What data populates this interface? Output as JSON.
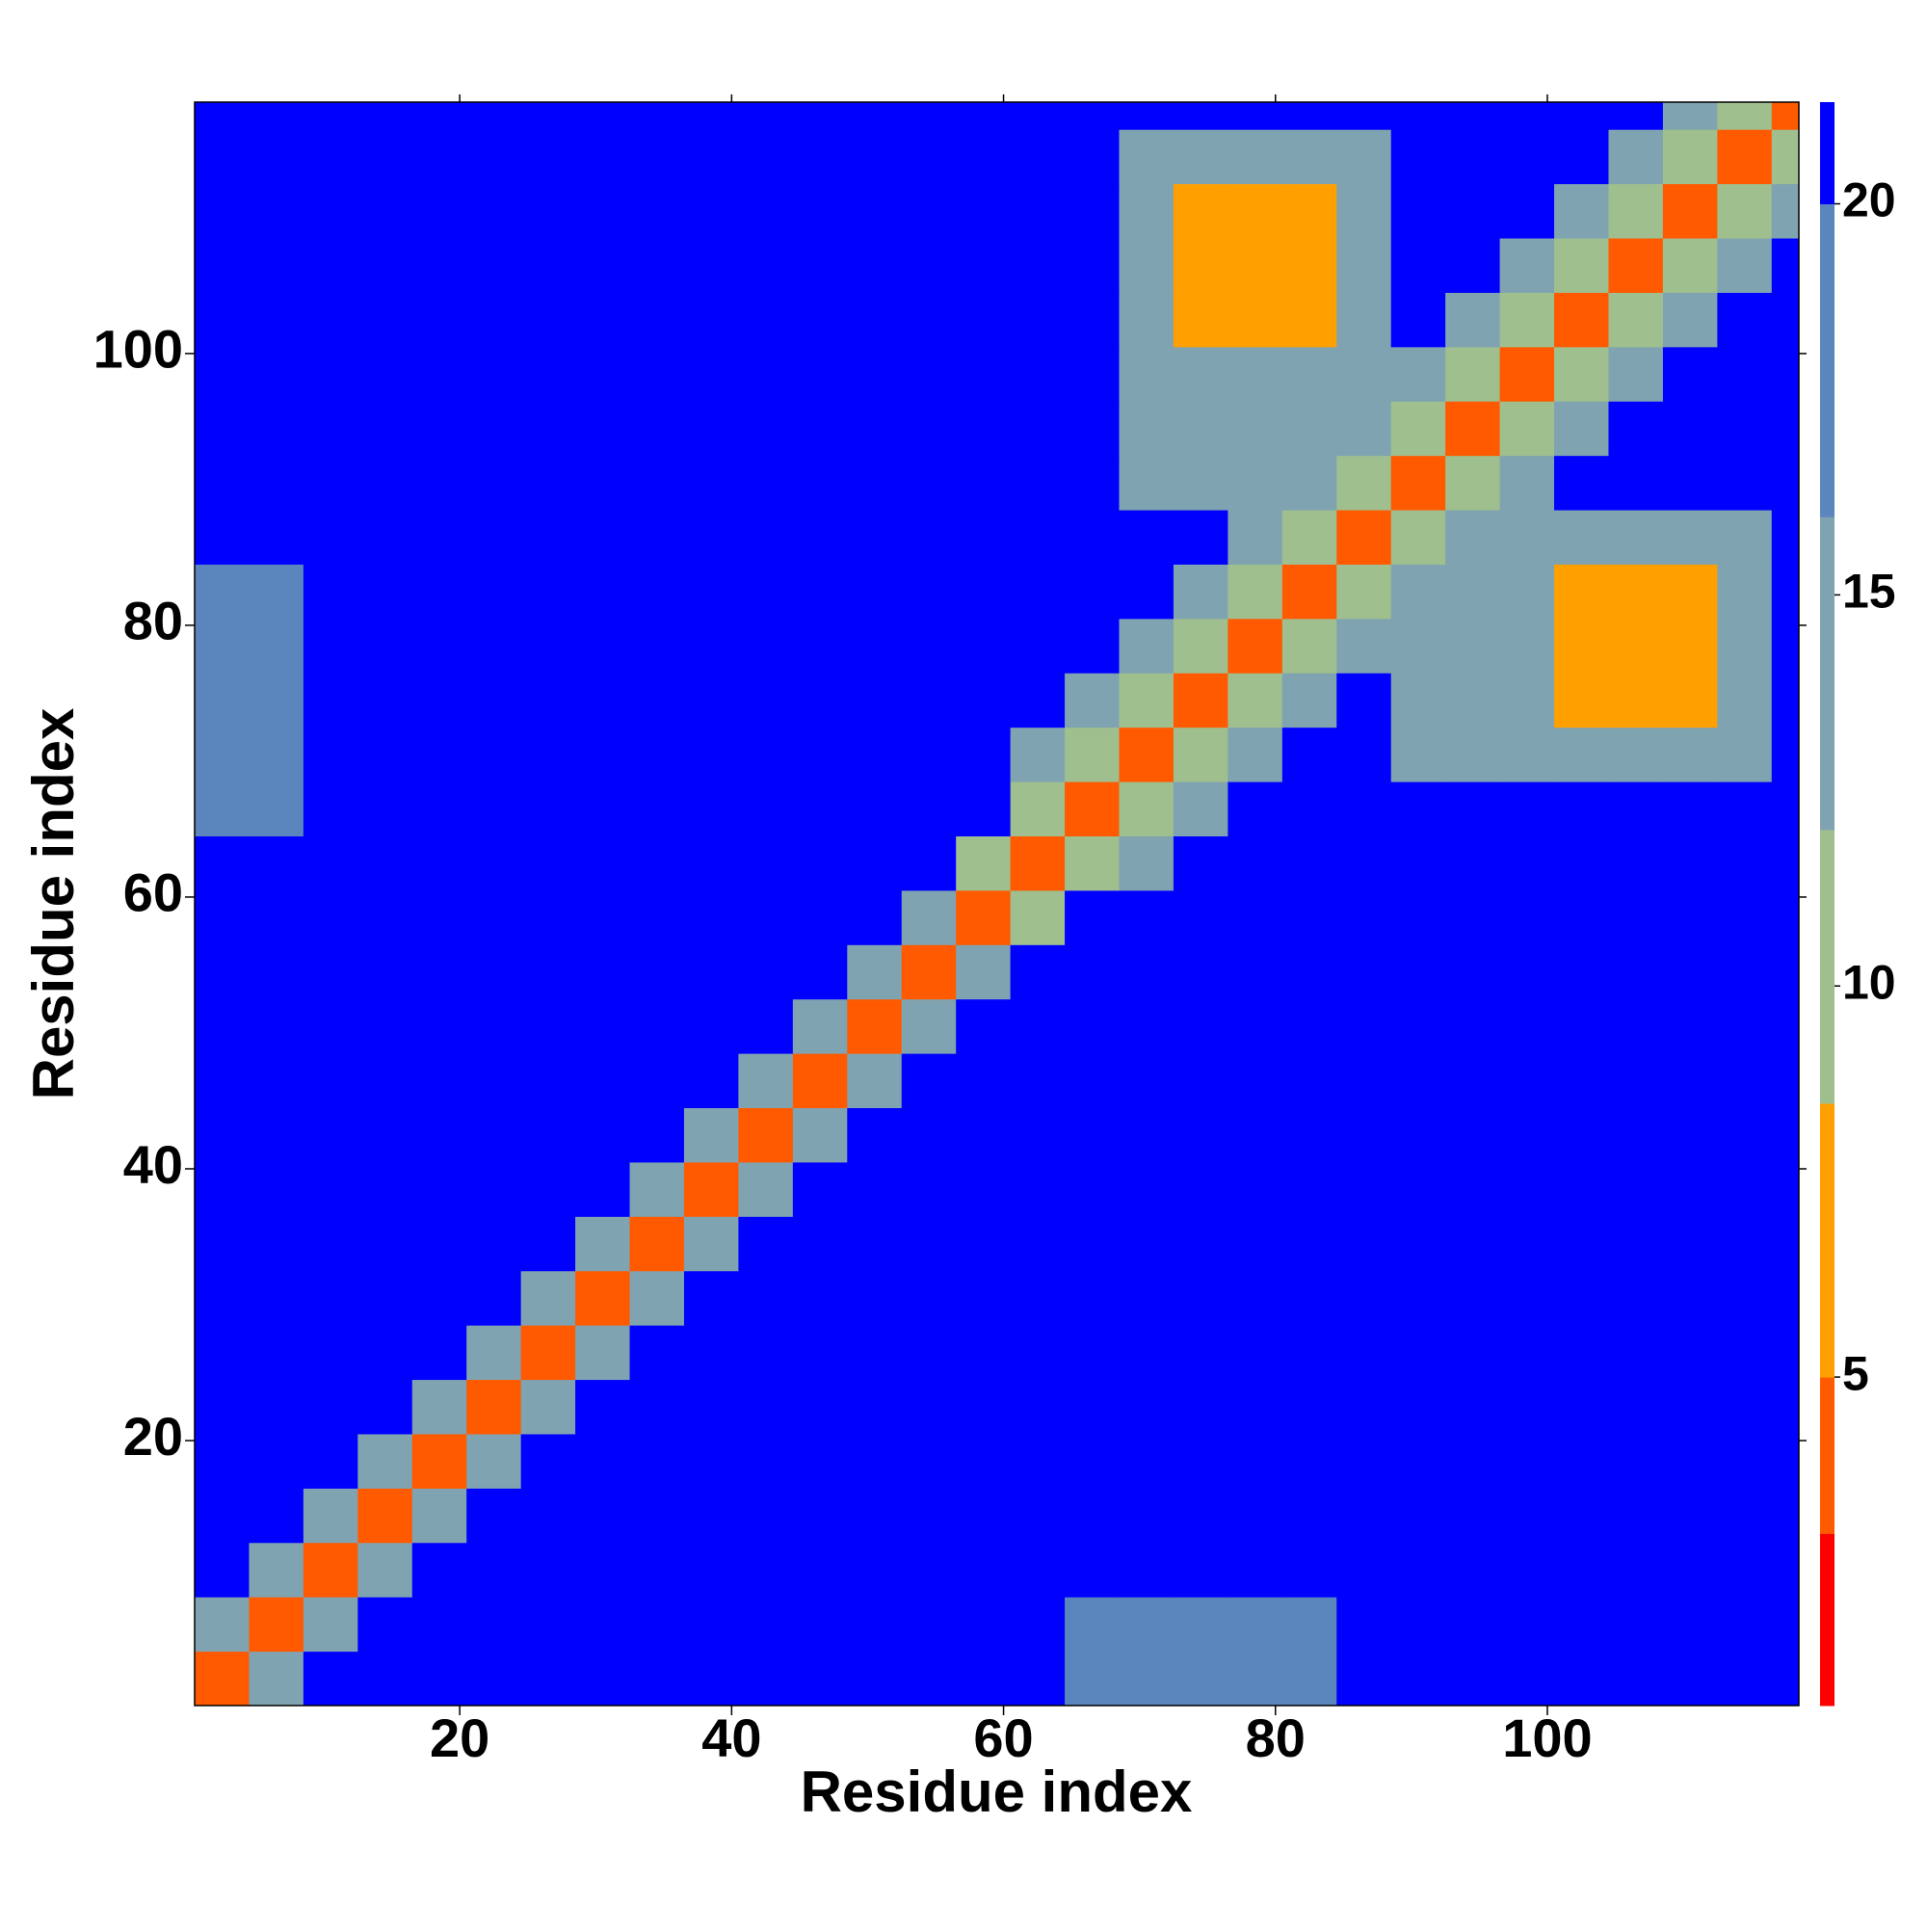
{
  "chart_data": {
    "type": "heatmap",
    "xlabel": "Residue index",
    "ylabel": "Residue index",
    "x": [
      2.5,
      6.5,
      10.5,
      14.5,
      18.5,
      22.5,
      26.5,
      30.5,
      34.5,
      38.5,
      42.5,
      46.5,
      50.5,
      54.5,
      58.5,
      62.5,
      66.5,
      70.5,
      74.5,
      78.5,
      82.5,
      86.5,
      90.5,
      94.5,
      98.5,
      102.5,
      106.5,
      110.5,
      114.5,
      118.5
    ],
    "y": [
      2.5,
      6.5,
      10.5,
      14.5,
      18.5,
      22.5,
      26.5,
      30.5,
      34.5,
      38.5,
      42.5,
      46.5,
      50.5,
      54.5,
      58.5,
      62.5,
      66.5,
      70.5,
      74.5,
      78.5,
      82.5,
      86.5,
      90.5,
      94.5,
      98.5,
      102.5,
      106.5,
      110.5,
      114.5,
      118.5
    ],
    "xlim": [
      0.5,
      118.5
    ],
    "ylim": [
      0.5,
      118.5
    ],
    "xticks": [
      20,
      40,
      60,
      80,
      100
    ],
    "yticks": [
      20,
      40,
      60,
      80,
      100
    ],
    "z": [
      [
        4,
        13,
        21,
        21,
        21,
        21,
        21,
        21,
        21,
        21,
        21,
        21,
        21,
        21,
        21,
        21,
        17,
        17,
        17,
        17,
        17,
        21,
        21,
        21,
        21,
        21,
        21,
        21,
        21,
        21
      ],
      [
        13,
        4,
        13,
        21,
        21,
        21,
        21,
        21,
        21,
        21,
        21,
        21,
        21,
        21,
        21,
        21,
        17,
        17,
        17,
        17,
        17,
        21,
        21,
        21,
        21,
        21,
        21,
        21,
        21,
        21
      ],
      [
        21,
        13,
        4,
        13,
        21,
        21,
        21,
        21,
        21,
        21,
        21,
        21,
        21,
        21,
        21,
        21,
        21,
        21,
        21,
        21,
        21,
        21,
        21,
        21,
        21,
        21,
        21,
        21,
        21,
        21
      ],
      [
        21,
        21,
        13,
        4,
        13,
        21,
        21,
        21,
        21,
        21,
        21,
        21,
        21,
        21,
        21,
        21,
        21,
        21,
        21,
        21,
        21,
        21,
        21,
        21,
        21,
        21,
        21,
        21,
        21,
        21
      ],
      [
        21,
        21,
        21,
        13,
        4,
        13,
        21,
        21,
        21,
        21,
        21,
        21,
        21,
        21,
        21,
        21,
        21,
        21,
        21,
        21,
        21,
        21,
        21,
        21,
        21,
        21,
        21,
        21,
        21,
        21
      ],
      [
        21,
        21,
        21,
        21,
        13,
        4,
        13,
        21,
        21,
        21,
        21,
        21,
        21,
        21,
        21,
        21,
        21,
        21,
        21,
        21,
        21,
        21,
        21,
        21,
        21,
        21,
        21,
        21,
        21,
        21
      ],
      [
        21,
        21,
        21,
        21,
        21,
        13,
        4,
        13,
        21,
        21,
        21,
        21,
        21,
        21,
        21,
        21,
        21,
        21,
        21,
        21,
        21,
        21,
        21,
        21,
        21,
        21,
        21,
        21,
        21,
        21
      ],
      [
        21,
        21,
        21,
        21,
        21,
        21,
        13,
        4,
        13,
        21,
        21,
        21,
        21,
        21,
        21,
        21,
        21,
        21,
        21,
        21,
        21,
        21,
        21,
        21,
        21,
        21,
        21,
        21,
        21,
        21
      ],
      [
        21,
        21,
        21,
        21,
        21,
        21,
        21,
        13,
        4,
        13,
        21,
        21,
        21,
        21,
        21,
        21,
        21,
        21,
        21,
        21,
        21,
        21,
        21,
        21,
        21,
        21,
        21,
        21,
        21,
        21
      ],
      [
        21,
        21,
        21,
        21,
        21,
        21,
        21,
        21,
        13,
        4,
        13,
        21,
        21,
        21,
        21,
        21,
        21,
        21,
        21,
        21,
        21,
        21,
        21,
        21,
        21,
        21,
        21,
        21,
        21,
        21
      ],
      [
        21,
        21,
        21,
        21,
        21,
        21,
        21,
        21,
        21,
        13,
        4,
        13,
        21,
        21,
        21,
        21,
        21,
        21,
        21,
        21,
        21,
        21,
        21,
        21,
        21,
        21,
        21,
        21,
        21,
        21
      ],
      [
        21,
        21,
        21,
        21,
        21,
        21,
        21,
        21,
        21,
        21,
        13,
        4,
        13,
        21,
        21,
        21,
        21,
        21,
        21,
        21,
        21,
        21,
        21,
        21,
        21,
        21,
        21,
        21,
        21,
        21
      ],
      [
        21,
        21,
        21,
        21,
        21,
        21,
        21,
        21,
        21,
        21,
        21,
        13,
        4,
        13,
        21,
        21,
        21,
        21,
        21,
        21,
        21,
        21,
        21,
        21,
        21,
        21,
        21,
        21,
        21,
        21
      ],
      [
        21,
        21,
        21,
        21,
        21,
        21,
        21,
        21,
        21,
        21,
        21,
        21,
        13,
        4,
        13,
        21,
        21,
        21,
        21,
        21,
        21,
        21,
        21,
        21,
        21,
        21,
        21,
        21,
        21,
        21
      ],
      [
        21,
        21,
        21,
        21,
        21,
        21,
        21,
        21,
        21,
        21,
        21,
        21,
        21,
        13,
        4,
        10,
        21,
        21,
        21,
        21,
        21,
        21,
        21,
        21,
        21,
        21,
        21,
        21,
        21,
        21
      ],
      [
        21,
        21,
        21,
        21,
        21,
        21,
        21,
        21,
        21,
        21,
        21,
        21,
        21,
        21,
        10,
        4,
        10,
        15,
        21,
        21,
        21,
        21,
        21,
        21,
        21,
        21,
        21,
        21,
        21,
        21
      ],
      [
        17,
        17,
        21,
        21,
        21,
        21,
        21,
        21,
        21,
        21,
        21,
        21,
        21,
        21,
        21,
        10,
        4,
        10,
        15,
        21,
        21,
        21,
        21,
        21,
        21,
        21,
        21,
        21,
        21,
        21
      ],
      [
        17,
        17,
        21,
        21,
        21,
        21,
        21,
        21,
        21,
        21,
        21,
        21,
        21,
        21,
        21,
        15,
        10,
        4,
        10,
        15,
        21,
        21,
        16,
        16,
        16,
        16,
        16,
        16,
        16,
        21
      ],
      [
        17,
        17,
        21,
        21,
        21,
        21,
        21,
        21,
        21,
        21,
        21,
        21,
        21,
        21,
        21,
        21,
        15,
        10,
        4,
        10,
        15,
        21,
        16,
        16,
        16,
        8,
        8,
        8,
        16,
        21
      ],
      [
        17,
        17,
        21,
        21,
        21,
        21,
        21,
        21,
        21,
        21,
        21,
        21,
        21,
        21,
        21,
        21,
        21,
        15,
        10,
        4,
        10,
        15,
        16,
        16,
        16,
        8,
        8,
        8,
        16,
        21
      ],
      [
        17,
        17,
        21,
        21,
        21,
        21,
        21,
        21,
        21,
        21,
        21,
        21,
        21,
        21,
        21,
        21,
        21,
        21,
        15,
        10,
        4,
        10,
        15,
        16,
        16,
        8,
        8,
        8,
        16,
        21
      ],
      [
        21,
        21,
        21,
        21,
        21,
        21,
        21,
        21,
        21,
        21,
        21,
        21,
        21,
        21,
        21,
        21,
        21,
        21,
        21,
        15,
        10,
        4,
        10,
        15,
        16,
        16,
        16,
        16,
        16,
        21
      ],
      [
        21,
        21,
        21,
        21,
        21,
        21,
        21,
        21,
        21,
        21,
        21,
        21,
        21,
        21,
        21,
        21,
        21,
        16,
        16,
        16,
        15,
        10,
        4,
        10,
        15,
        21,
        21,
        21,
        21,
        21
      ],
      [
        21,
        21,
        21,
        21,
        21,
        21,
        21,
        21,
        21,
        21,
        21,
        21,
        21,
        21,
        21,
        21,
        21,
        16,
        16,
        16,
        16,
        15,
        10,
        4,
        10,
        15,
        21,
        21,
        21,
        21
      ],
      [
        21,
        21,
        21,
        21,
        21,
        21,
        21,
        21,
        21,
        21,
        21,
        21,
        21,
        21,
        21,
        21,
        21,
        16,
        16,
        16,
        16,
        16,
        15,
        10,
        4,
        10,
        15,
        21,
        21,
        21
      ],
      [
        21,
        21,
        21,
        21,
        21,
        21,
        21,
        21,
        21,
        21,
        21,
        21,
        21,
        21,
        21,
        21,
        21,
        16,
        8,
        8,
        8,
        16,
        21,
        15,
        10,
        4,
        10,
        15,
        21,
        21
      ],
      [
        21,
        21,
        21,
        21,
        21,
        21,
        21,
        21,
        21,
        21,
        21,
        21,
        21,
        21,
        21,
        21,
        21,
        16,
        8,
        8,
        8,
        16,
        21,
        21,
        15,
        10,
        4,
        10,
        15,
        21
      ],
      [
        21,
        21,
        21,
        21,
        21,
        21,
        21,
        21,
        21,
        21,
        21,
        21,
        21,
        21,
        21,
        21,
        21,
        16,
        8,
        8,
        8,
        16,
        21,
        21,
        21,
        15,
        10,
        4,
        10,
        15
      ],
      [
        21,
        21,
        21,
        21,
        21,
        21,
        21,
        21,
        21,
        21,
        21,
        21,
        21,
        21,
        21,
        21,
        21,
        16,
        16,
        16,
        16,
        16,
        21,
        21,
        21,
        21,
        15,
        10,
        4,
        10
      ],
      [
        21,
        21,
        21,
        21,
        21,
        21,
        21,
        21,
        21,
        21,
        21,
        21,
        21,
        21,
        21,
        21,
        21,
        21,
        21,
        21,
        21,
        21,
        21,
        21,
        21,
        21,
        21,
        15,
        10,
        4
      ]
    ],
    "colorbar": {
      "levels": [
        0.8,
        3,
        5,
        8.5,
        12,
        16,
        20,
        21.3
      ],
      "colors": [
        "#ff0000",
        "#ff5a00",
        "#ffa000",
        "#9fbf8f",
        "#7fa3b0",
        "#5b86bd",
        "#0000ff"
      ],
      "ticks": [
        5,
        10,
        15,
        20
      ]
    }
  }
}
